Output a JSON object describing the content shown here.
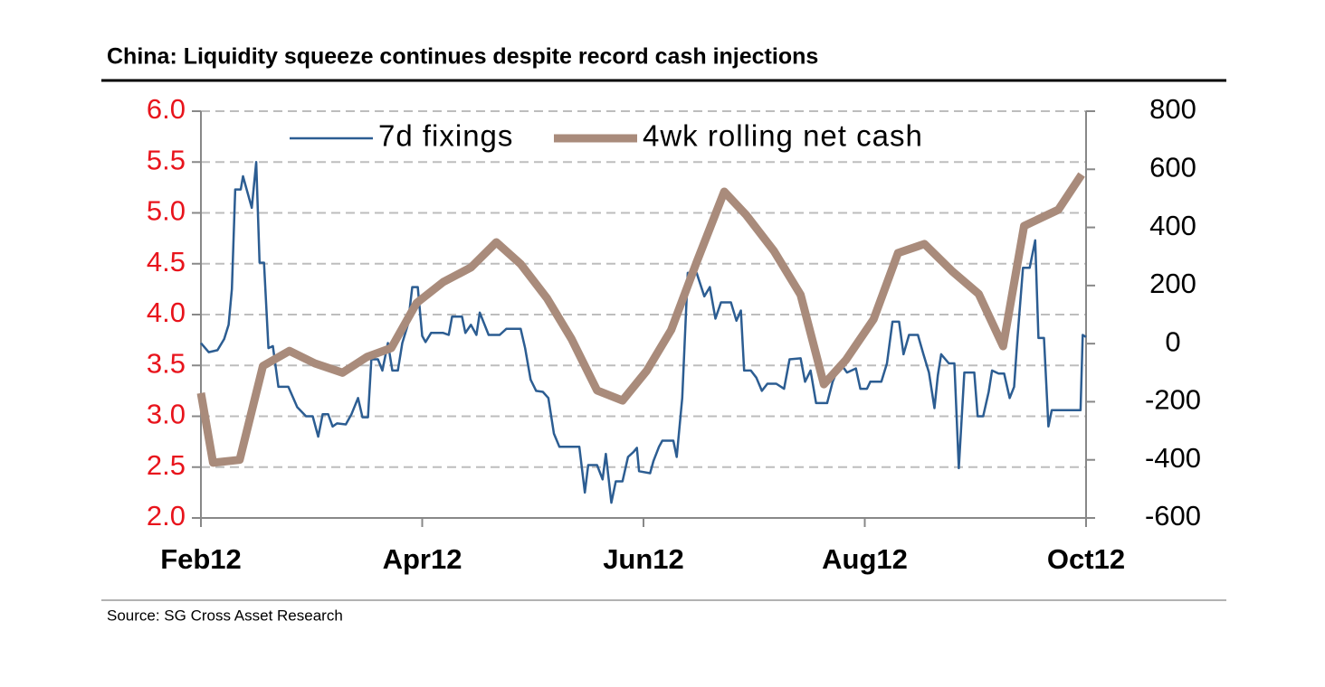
{
  "chart_data": {
    "type": "line",
    "title": "China: Liquidity squeeze continues despite record cash injections",
    "source": "Source: SG Cross Asset Research",
    "xlim": [
      0,
      8
    ],
    "xticks": [
      {
        "value": 0,
        "label": "Feb12"
      },
      {
        "value": 2,
        "label": "Apr12"
      },
      {
        "value": 4,
        "label": "Jun12"
      },
      {
        "value": 6,
        "label": "Aug12"
      },
      {
        "value": 8,
        "label": "Oct12"
      }
    ],
    "ylim": [
      2,
      6
    ],
    "yticks": [
      {
        "value": 2,
        "label": "2.0"
      },
      2.5,
      {
        "value": 3,
        "label": "3.0"
      },
      3.5,
      {
        "value": 4,
        "label": "4.0"
      },
      4.5,
      {
        "value": 5,
        "label": "5.0"
      },
      5.5,
      {
        "value": 6,
        "label": "6.0"
      }
    ],
    "y2lim": [
      -600,
      800
    ],
    "y2ticks": [
      -600,
      -400,
      -200,
      0,
      200,
      400,
      600,
      800
    ],
    "grid": true,
    "y_tick_color": "#e8141c",
    "legend": "top",
    "series": [
      {
        "name": "7d fixings",
        "color": "#2c5d92",
        "x": [
          0,
          0.07,
          0.15,
          0.21,
          0.25,
          0.28,
          0.31,
          0.36,
          0.38,
          0.46,
          0.5,
          0.53,
          0.57,
          0.61,
          0.65,
          0.7,
          0.79,
          0.87,
          0.95,
          1.01,
          1.06,
          1.1,
          1.15,
          1.19,
          1.23,
          1.31,
          1.36,
          1.42,
          1.46,
          1.51,
          1.54,
          1.6,
          1.64,
          1.69,
          1.73,
          1.78,
          1.82,
          1.87,
          1.91,
          1.96,
          2,
          2.03,
          2.08,
          2.19,
          2.24,
          2.27,
          2.36,
          2.39,
          2.44,
          2.49,
          2.52,
          2.6,
          2.7,
          2.76,
          2.89,
          2.93,
          2.98,
          3.03,
          3.09,
          3.14,
          3.19,
          3.24,
          3.42,
          3.47,
          3.5,
          3.58,
          3.63,
          3.66,
          3.71,
          3.75,
          3.81,
          3.86,
          3.91,
          3.94,
          3.96,
          4.06,
          4.09,
          4.14,
          4.17,
          4.27,
          4.3,
          4.35,
          4.4,
          4.48,
          4.55,
          4.6,
          4.65,
          4.7,
          4.79,
          4.84,
          4.88,
          4.91,
          4.97,
          5.02,
          5.07,
          5.12,
          5.2,
          5.27,
          5.32,
          5.42,
          5.46,
          5.51,
          5.56,
          5.66,
          5.71,
          5.78,
          5.84,
          5.92,
          5.96,
          6.02,
          6.05,
          6.15,
          6.2,
          6.25,
          6.31,
          6.35,
          6.4,
          6.48,
          6.53,
          6.58,
          6.63,
          6.66,
          6.69,
          6.76,
          6.81,
          6.85,
          6.9,
          6.99,
          7.02,
          7.07,
          7.12,
          7.15,
          7.21,
          7.26,
          7.31,
          7.35,
          7.38,
          7.43,
          7.49,
          7.54,
          7.57,
          7.62,
          7.66,
          7.69,
          7.95,
          7.97,
          8
        ],
        "values": [
          3.72,
          3.63,
          3.65,
          3.76,
          3.9,
          4.25,
          5.23,
          5.23,
          5.36,
          5.05,
          5.5,
          4.51,
          4.51,
          3.67,
          3.69,
          3.29,
          3.29,
          3.09,
          3,
          3,
          2.8,
          3.02,
          3.02,
          2.9,
          2.93,
          2.92,
          3.02,
          3.18,
          2.99,
          2.99,
          3.56,
          3.56,
          3.45,
          3.72,
          3.45,
          3.45,
          3.72,
          3.9,
          4.27,
          4.27,
          3.79,
          3.73,
          3.82,
          3.82,
          3.8,
          3.98,
          3.98,
          3.82,
          3.9,
          3.8,
          4.02,
          3.8,
          3.8,
          3.86,
          3.86,
          3.67,
          3.36,
          3.25,
          3.24,
          3.18,
          2.83,
          2.7,
          2.7,
          2.25,
          2.52,
          2.52,
          2.38,
          2.63,
          2.15,
          2.36,
          2.36,
          2.6,
          2.65,
          2.69,
          2.46,
          2.44,
          2.56,
          2.7,
          2.76,
          2.76,
          2.6,
          3.18,
          4.41,
          4.41,
          4.18,
          4.27,
          3.96,
          4.12,
          4.12,
          3.94,
          4.04,
          3.45,
          3.45,
          3.38,
          3.25,
          3.32,
          3.32,
          3.27,
          3.56,
          3.57,
          3.34,
          3.45,
          3.13,
          3.13,
          3.34,
          3.52,
          3.43,
          3.47,
          3.27,
          3.27,
          3.34,
          3.34,
          3.52,
          3.93,
          3.93,
          3.61,
          3.8,
          3.8,
          3.61,
          3.43,
          3.08,
          3.4,
          3.61,
          3.52,
          3.52,
          2.49,
          3.43,
          3.43,
          3,
          3,
          3.24,
          3.45,
          3.42,
          3.42,
          3.18,
          3.29,
          3.77,
          4.46,
          4.46,
          4.73,
          3.77,
          3.77,
          2.9,
          3.06,
          3.06,
          3.8,
          3.78
        ],
        "width": 2.5
      },
      {
        "name": "4wk rolling net cash",
        "color": "#a98b7b",
        "axis": "y2",
        "x": [
          0,
          0.11,
          0.35,
          0.56,
          0.8,
          1.03,
          1.28,
          1.5,
          1.72,
          1.95,
          2.19,
          2.44,
          2.67,
          2.89,
          3.13,
          3.35,
          3.58,
          3.81,
          4.03,
          4.25,
          4.48,
          4.73,
          4.93,
          5.18,
          5.42,
          5.63,
          5.83,
          6.08,
          6.3,
          6.54,
          6.79,
          7.03,
          7.25,
          7.44,
          7.75,
          7.96
        ],
        "values": [
          -170,
          -410,
          -400,
          -77,
          -25,
          -68,
          -100,
          -46,
          -15,
          140,
          212,
          262,
          349,
          274,
          155,
          16,
          -161,
          -196,
          -93,
          47,
          280,
          523,
          442,
          318,
          168,
          -140,
          -56,
          84,
          312,
          343,
          249,
          171,
          -9,
          405,
          461,
          582
        ],
        "width": 9
      }
    ]
  }
}
